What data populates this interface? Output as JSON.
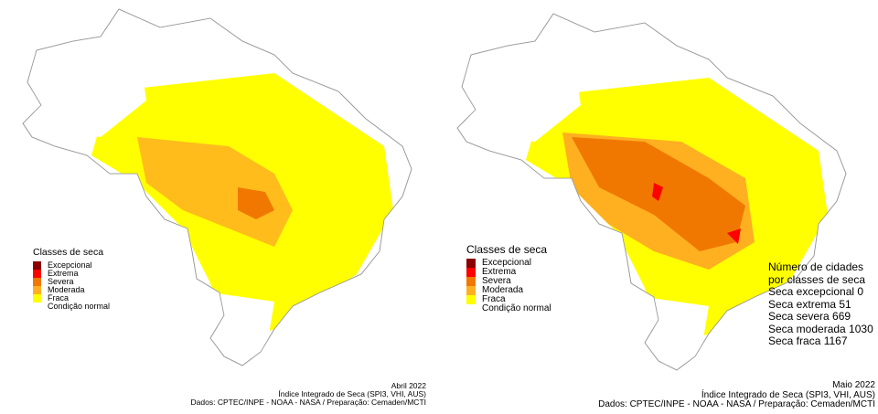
{
  "legend": {
    "title": "Classes de seca",
    "items": [
      {
        "label": "Excepcional",
        "color": "#8b0000"
      },
      {
        "label": "Extrema",
        "color": "#ff0000"
      },
      {
        "label": "Severa",
        "color": "#f07800"
      },
      {
        "label": "Moderada",
        "color": "#ffb020"
      },
      {
        "label": "Fraca",
        "color": "#ffff00"
      },
      {
        "label": "Condição normal",
        "color": "#ffffff"
      }
    ]
  },
  "left_map": {
    "month": "Abril 2022",
    "index": "Índice Integrado de Seca (SPI3, VHI, AUS)",
    "source": "Dados: CPTEC/INPE - NOAA - NASA / Preparação: Cemaden/MCTI"
  },
  "right_map": {
    "month": "Maio 2022",
    "index": "Índice Integrado de Seca (SPI3, VHI, AUS)",
    "source": "Dados: CPTEC/INPE - NOAA - NASA / Preparação: Cemaden/MCTI",
    "stats": {
      "heading1": "Número de cidades",
      "heading2": "por classes de seca",
      "lines": [
        "Seca excepcional 0",
        "Seca extrema  51",
        "Seca severa  669",
        "Seca moderada 1030",
        "Seca fraca  1167"
      ]
    }
  }
}
